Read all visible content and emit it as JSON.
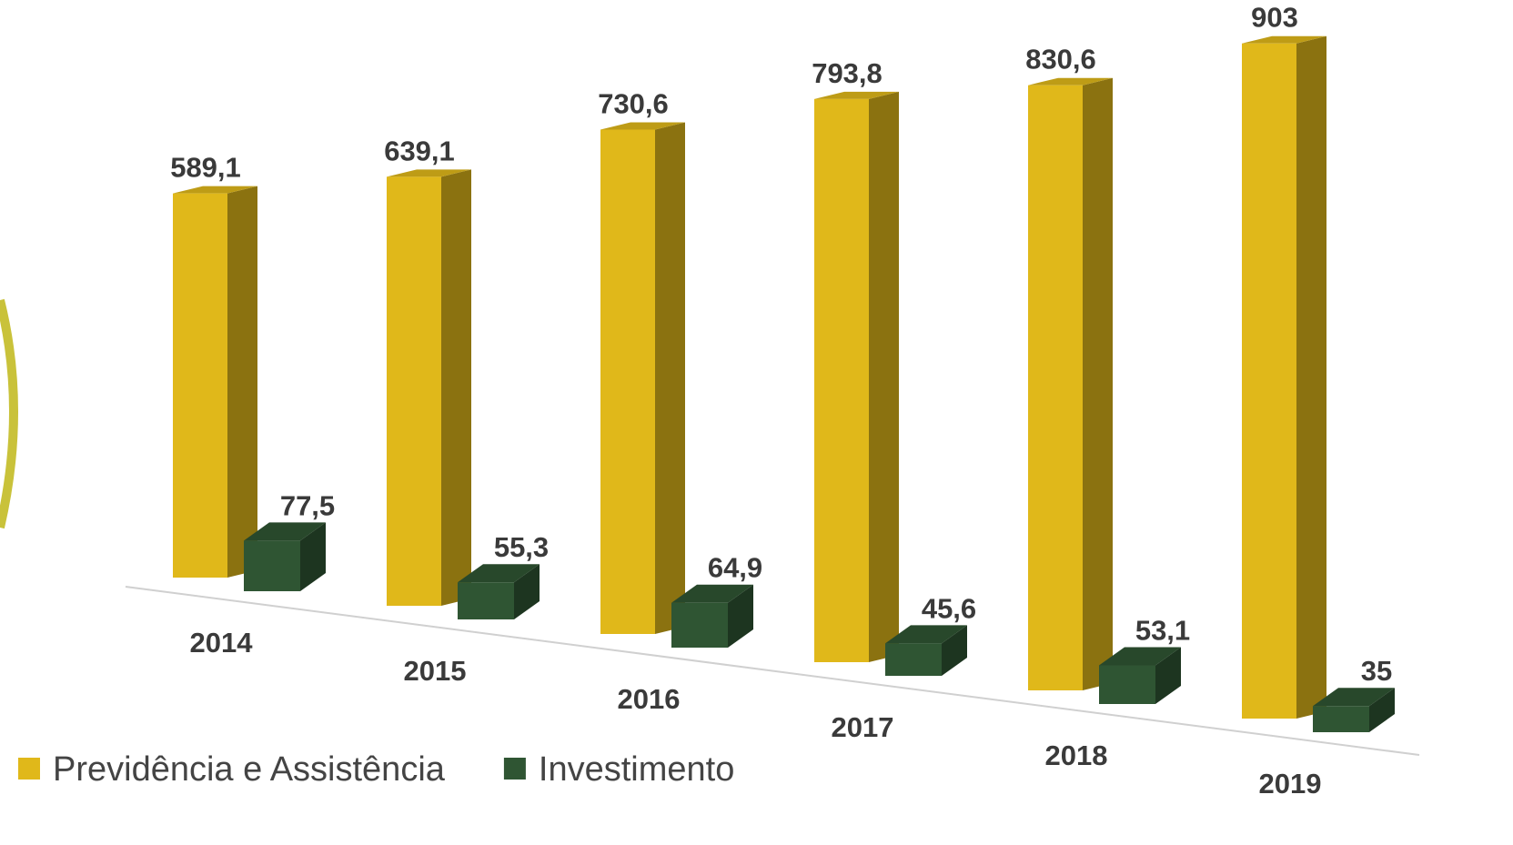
{
  "chart_data": {
    "type": "bar3d",
    "categories": [
      "2014",
      "2015",
      "2016",
      "2017",
      "2018",
      "2019"
    ],
    "series": [
      {
        "name": "Previdência e Assistência",
        "color": "#e0b81a",
        "values": [
          589.1,
          639.1,
          730.6,
          793.8,
          830.6,
          903
        ],
        "value_labels": [
          "589,1",
          "639,1",
          "730,6",
          "793,8",
          "830,6",
          "903"
        ]
      },
      {
        "name": "Investimento",
        "color": "#2f5533",
        "values": [
          77.5,
          55.3,
          64.9,
          45.6,
          53.1,
          35
        ],
        "value_labels": [
          "77,5",
          "55,3",
          "64,9",
          "45,6",
          "53,1",
          "35"
        ]
      }
    ],
    "legend": "bottom-left"
  }
}
